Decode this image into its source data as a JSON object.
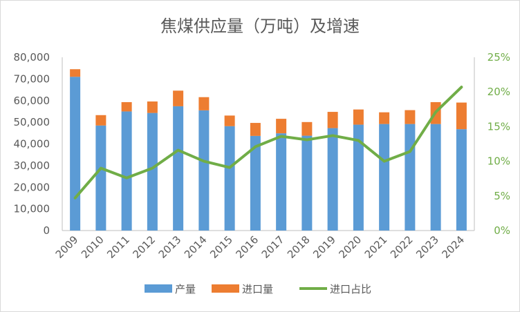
{
  "chart_data": {
    "type": "bar",
    "title": "焦煤供应量（万吨）及增速",
    "categories": [
      "2009",
      "2010",
      "2011",
      "2012",
      "2013",
      "2014",
      "2015",
      "2016",
      "2017",
      "2018",
      "2019",
      "2020",
      "2021",
      "2022",
      "2023",
      "2024"
    ],
    "series": [
      {
        "name": "产量",
        "kind": "stacked-bar",
        "axis": "left",
        "color": "#5b9bd5",
        "values": [
          71000,
          48500,
          55000,
          54300,
          57400,
          55500,
          48200,
          43700,
          44900,
          43800,
          47300,
          48900,
          49200,
          49200,
          49200,
          46800
        ]
      },
      {
        "name": "进口量",
        "kind": "stacked-bar",
        "axis": "left",
        "color": "#ed7d31",
        "values": [
          3500,
          4800,
          4300,
          5300,
          7200,
          6100,
          4900,
          6000,
          6700,
          6300,
          7500,
          7000,
          5400,
          6400,
          10100,
          12300
        ]
      },
      {
        "name": "进口占比",
        "kind": "line",
        "axis": "right",
        "color": "#70ad47",
        "values": [
          0.047,
          0.09,
          0.076,
          0.09,
          0.116,
          0.1,
          0.091,
          0.121,
          0.136,
          0.131,
          0.137,
          0.13,
          0.1,
          0.114,
          0.171,
          0.207
        ]
      }
    ],
    "y_left": {
      "min": 0,
      "max": 80000,
      "step": 10000,
      "tick_labels": [
        "0",
        "10,000",
        "20,000",
        "30,000",
        "40,000",
        "50,000",
        "60,000",
        "70,000",
        "80,000"
      ]
    },
    "y_right": {
      "min": 0,
      "max": 0.25,
      "step": 0.05,
      "tick_labels": [
        "0%",
        "5%",
        "10%",
        "15%",
        "20%",
        "25%"
      ]
    },
    "grid": false,
    "legend_position": "bottom"
  }
}
